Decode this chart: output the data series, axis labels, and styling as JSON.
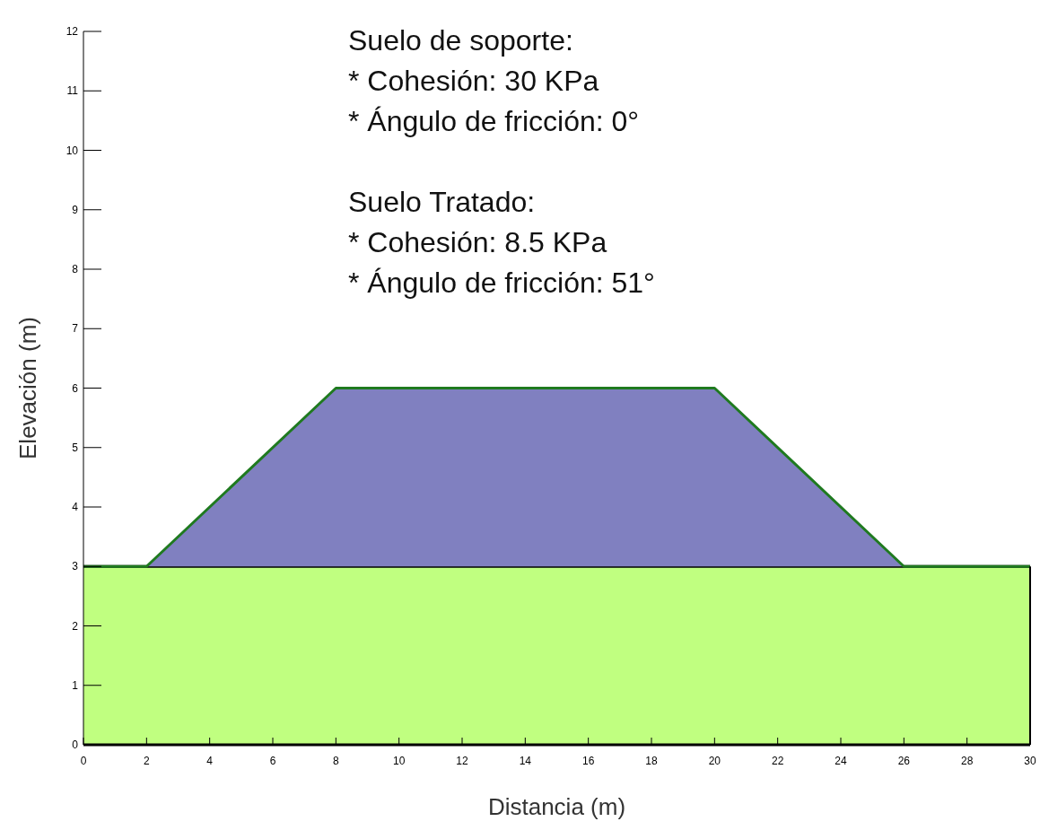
{
  "chart_data": {
    "type": "area",
    "stacked": true,
    "xlabel": "Distancia (m)",
    "ylabel": "Elevación (m)",
    "x": [
      0,
      2,
      8,
      14,
      20,
      26,
      30
    ],
    "series": [
      {
        "color": "#c0ff80",
        "values": [
          3,
          3,
          3,
          3,
          3,
          3,
          3
        ]
      },
      {
        "color": "#8080c0",
        "values": [
          0,
          0,
          3,
          3,
          3,
          0,
          0
        ]
      }
    ],
    "xlim": [
      0,
      30
    ],
    "xticks": [
      0,
      2,
      4,
      6,
      8,
      10,
      12,
      14,
      16,
      18,
      20,
      22,
      24,
      26,
      28,
      30
    ],
    "ylim": [
      0,
      12
    ],
    "yticks": [
      0,
      1,
      2,
      3,
      4,
      5,
      6,
      7,
      8,
      9,
      10,
      11,
      12
    ],
    "annotations": [
      "Suelo de soporte:\n* Cohesión: 30 KPa\n* Ángulo de fricción: 0°",
      "Suelo Tratado:\n* Cohesión: 8.5 KPa\n* Ángulo de fricción: 51°"
    ]
  }
}
